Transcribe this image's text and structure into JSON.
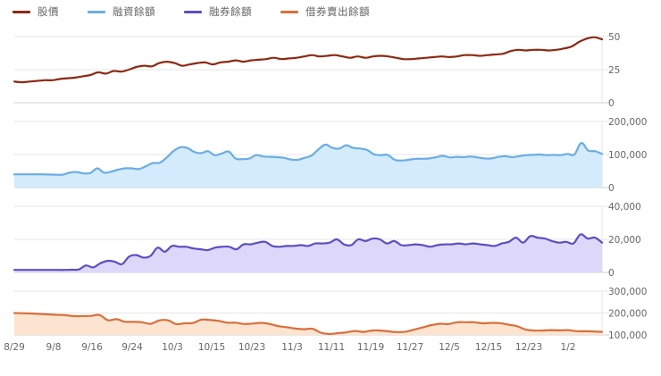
{
  "legend": [
    {
      "label": "股價",
      "color": "#8b2a12"
    },
    {
      "label": "融資餘額",
      "color": "#6aade4"
    },
    {
      "label": "融券餘額",
      "color": "#5b4fc4"
    },
    {
      "label": "借券賣出餘額",
      "color": "#d8703a"
    }
  ],
  "chart_data": [
    {
      "type": "line",
      "title": "股價",
      "ylim": [
        0,
        50
      ],
      "yticks": [
        "50",
        "25",
        "0"
      ],
      "color": "#8b2a12",
      "fill": null,
      "x": [
        "8/29",
        "9/8",
        "9/16",
        "9/24",
        "10/3",
        "10/15",
        "10/23",
        "11/3",
        "11/11",
        "11/19",
        "11/27",
        "12/5",
        "12/15",
        "12/23",
        "1/2"
      ],
      "values": [
        16,
        15.5,
        16,
        16.5,
        17,
        17,
        18,
        18.5,
        19,
        20,
        21,
        23,
        22,
        24,
        23.5,
        25,
        27,
        28,
        27.5,
        30,
        31,
        30,
        28,
        29,
        30,
        30.5,
        29,
        30.5,
        31,
        32,
        31,
        32,
        32.5,
        33,
        34,
        33,
        33.5,
        34,
        35,
        36,
        35,
        35.5,
        36,
        35,
        34,
        35,
        34,
        35,
        35.5,
        35,
        34,
        33,
        33,
        33.5,
        34,
        34.5,
        35,
        34.5,
        35,
        36,
        36,
        35.5,
        36,
        36.5,
        37,
        39,
        40,
        39.5,
        40,
        40,
        39.5,
        40,
        41,
        42.5,
        46,
        48.5,
        49.5,
        48
      ]
    },
    {
      "type": "area",
      "title": "融資餘額",
      "ylim": [
        0,
        200000
      ],
      "yticks": [
        "200,000",
        "100,000",
        "0"
      ],
      "color": "#6aade4",
      "fill": "#d3ebfb",
      "values": [
        40000,
        40000,
        40000,
        40000,
        40000,
        39500,
        39000,
        39000,
        45000,
        47000,
        43000,
        44000,
        58000,
        45000,
        48000,
        54000,
        58000,
        58000,
        56000,
        64000,
        74000,
        75000,
        90000,
        110000,
        122000,
        120000,
        108000,
        104000,
        110000,
        98000,
        103000,
        109000,
        88000,
        86000,
        88000,
        98000,
        94000,
        93000,
        92000,
        90000,
        85000,
        84000,
        90000,
        97000,
        116000,
        130000,
        120000,
        118000,
        128000,
        120000,
        118000,
        114000,
        101000,
        98000,
        99000,
        84000,
        82000,
        84000,
        87000,
        87000,
        88000,
        92000,
        96000,
        91000,
        93000,
        92000,
        94000,
        91000,
        88000,
        88000,
        93000,
        95000,
        92000,
        95000,
        98000,
        99000,
        100000,
        98000,
        99000,
        98000,
        102000,
        100000,
        135000,
        112000,
        110000,
        102000
      ]
    },
    {
      "type": "area",
      "title": "融券餘額",
      "ylim": [
        0,
        40000
      ],
      "yticks": [
        "40,000",
        "20,000",
        "0"
      ],
      "color": "#5b4fc4",
      "fill": "#ddd8fa",
      "values": [
        1500,
        1500,
        1500,
        1500,
        1500,
        1500,
        1500,
        1500,
        1600,
        1800,
        4200,
        3000,
        5500,
        7000,
        6500,
        5000,
        9500,
        10500,
        9000,
        10000,
        15000,
        12500,
        16000,
        15500,
        15500,
        14500,
        14000,
        13500,
        15000,
        15500,
        15500,
        14000,
        17000,
        17000,
        18000,
        18500,
        16000,
        15500,
        16000,
        16000,
        16500,
        16000,
        17500,
        17500,
        18000,
        20000,
        17000,
        16500,
        20000,
        19000,
        20500,
        20000,
        17500,
        19000,
        16500,
        16500,
        17000,
        16500,
        15500,
        16500,
        17000,
        17000,
        17500,
        17000,
        17500,
        17000,
        16500,
        16000,
        17500,
        18500,
        21000,
        18000,
        22000,
        21000,
        20500,
        19000,
        18000,
        18500,
        17500,
        23000,
        20500,
        21000,
        18000
      ]
    },
    {
      "type": "area",
      "title": "借券賣出餘額",
      "ylim": [
        100000,
        300000
      ],
      "yticks": [
        "300,000",
        "200,000",
        "100,000"
      ],
      "color": "#d8703a",
      "fill": "#fde4d1",
      "xticks": [
        "8/29",
        "9/8",
        "9/16",
        "9/24",
        "10/3",
        "10/15",
        "10/23",
        "11/3",
        "11/11",
        "11/19",
        "11/27",
        "12/5",
        "12/15",
        "12/23",
        "1/2"
      ],
      "values": [
        200000,
        199000,
        198000,
        196000,
        194000,
        192000,
        190000,
        186000,
        186000,
        187000,
        191000,
        167000,
        172000,
        160000,
        160000,
        158000,
        151000,
        166000,
        167000,
        150000,
        153000,
        155000,
        170000,
        168000,
        164000,
        156000,
        156000,
        150000,
        152000,
        155000,
        150000,
        140000,
        135000,
        129000,
        126000,
        128000,
        110000,
        104000,
        108000,
        112000,
        118000,
        114000,
        120000,
        120000,
        116000,
        113000,
        115000,
        125000,
        135000,
        145000,
        151000,
        150000,
        158000,
        158000,
        158000,
        153000,
        155000,
        154000,
        147000,
        140000,
        125000,
        120000,
        120000,
        122000,
        121000,
        122000,
        117000,
        117000,
        116000,
        114000
      ]
    }
  ]
}
